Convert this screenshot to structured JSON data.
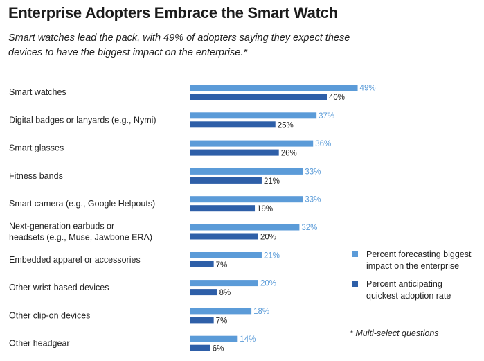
{
  "title": "Enterprise Adopters Embrace the Smart Watch",
  "subtitle": "Smart watches lead the pack, with 49% of adopters saying they expect these devices to have the biggest impact on the enterprise.*",
  "note": "* Multi-select questions",
  "colors": {
    "light": "#5b9bd8",
    "dark": "#2e5fa8"
  },
  "chart_data": {
    "type": "bar",
    "orientation": "horizontal",
    "title": "Enterprise Adopters Embrace the Smart Watch",
    "subtitle": "Smart watches lead the pack, with 49% of adopters saying they expect these devices to have the biggest impact on the enterprise.*",
    "categories": [
      [
        "Smart watches"
      ],
      [
        "Digital badges or lanyards (e.g., Nymi)"
      ],
      [
        "Smart glasses"
      ],
      [
        "Fitness bands"
      ],
      [
        "Smart camera (e.g., Google Helpouts)"
      ],
      [
        "Next-generation earbuds or",
        "headsets (e.g., Muse, Jawbone ERA)"
      ],
      [
        "Embedded apparel or accessories"
      ],
      [
        "Other wrist-based devices"
      ],
      [
        "Other clip-on devices"
      ],
      [
        "Other headgear"
      ]
    ],
    "series": [
      {
        "name": "Percent forecasting biggest impact on the enterprise",
        "name_lines": [
          "Percent forecasting biggest",
          "impact on the enterprise"
        ],
        "color": "#5b9bd8",
        "values": [
          49,
          37,
          36,
          33,
          33,
          32,
          21,
          20,
          18,
          14
        ]
      },
      {
        "name": "Percent anticipating quickest adoption rate",
        "name_lines": [
          "Percent anticipating",
          "quickest adoption rate"
        ],
        "color": "#2e5fa8",
        "values": [
          40,
          25,
          26,
          21,
          19,
          20,
          7,
          8,
          7,
          6
        ]
      }
    ],
    "value_suffix": "%",
    "xlim": [
      0,
      100
    ],
    "grid": false,
    "legend": "right"
  }
}
